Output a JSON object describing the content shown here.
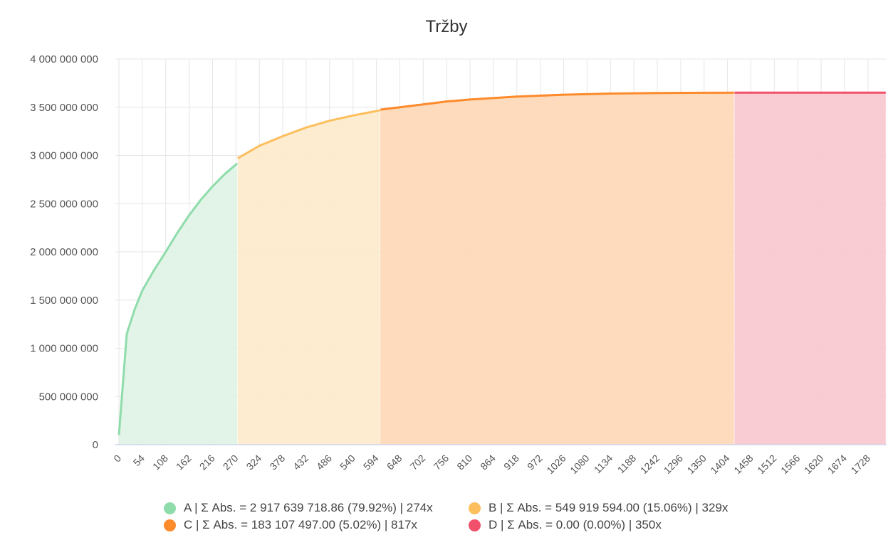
{
  "chart_data": {
    "type": "area",
    "title": "Tržby",
    "xlabel": "",
    "ylabel": "",
    "x_range": [
      0,
      1769
    ],
    "ylim": [
      0,
      4000000000
    ],
    "y_ticks": [
      0,
      500000000,
      1000000000,
      1500000000,
      2000000000,
      2500000000,
      3000000000,
      3500000000,
      4000000000
    ],
    "y_tick_labels": [
      "0",
      "500 000 000",
      "1 000 000 000",
      "1 500 000 000",
      "2 000 000 000",
      "2 500 000 000",
      "3 000 000 000",
      "3 500 000 000",
      "4 000 000 000"
    ],
    "x_ticks": [
      0,
      54,
      108,
      162,
      216,
      270,
      324,
      378,
      432,
      486,
      540,
      594,
      648,
      702,
      756,
      810,
      864,
      918,
      972,
      1026,
      1080,
      1134,
      1188,
      1242,
      1296,
      1350,
      1404,
      1458,
      1512,
      1566,
      1620,
      1674,
      1728
    ],
    "grid": true,
    "legend_position": "bottom",
    "series": [
      {
        "name": "A | Σ Abs. = 2 917 639 718.86 (79.92%) | 274x",
        "color": "#8fdcab",
        "fill": "#dff3e6",
        "points": [
          [
            0,
            100000000
          ],
          [
            18,
            1150000000
          ],
          [
            36,
            1400000000
          ],
          [
            54,
            1600000000
          ],
          [
            81,
            1810000000
          ],
          [
            108,
            2000000000
          ],
          [
            135,
            2200000000
          ],
          [
            162,
            2380000000
          ],
          [
            189,
            2540000000
          ],
          [
            216,
            2680000000
          ],
          [
            245,
            2810000000
          ],
          [
            273,
            2917639719
          ]
        ]
      },
      {
        "name": "B | Σ Abs. = 549 919 594.00 (15.06%) | 329x",
        "color": "#fdbf5e",
        "fill": "#fdebcc",
        "points": [
          [
            274,
            2970000000
          ],
          [
            324,
            3100000000
          ],
          [
            378,
            3200000000
          ],
          [
            432,
            3290000000
          ],
          [
            486,
            3360000000
          ],
          [
            540,
            3415000000
          ],
          [
            602,
            3467559313
          ]
        ]
      },
      {
        "name": "C | Σ Abs. = 183 107 497.00 (5.02%) | 817x",
        "color": "#fd8a2b",
        "fill": "#fdd9b8",
        "points": [
          [
            603,
            3475000000
          ],
          [
            648,
            3500000000
          ],
          [
            702,
            3530000000
          ],
          [
            756,
            3560000000
          ],
          [
            810,
            3580000000
          ],
          [
            918,
            3610000000
          ],
          [
            1026,
            3630000000
          ],
          [
            1134,
            3642000000
          ],
          [
            1242,
            3648000000
          ],
          [
            1350,
            3650500000
          ],
          [
            1419,
            3650666810
          ]
        ]
      },
      {
        "name": "D | Σ Abs. = 0.00 (0.00%) | 350x",
        "color": "#f0506a",
        "fill": "#f9c8d0",
        "points": [
          [
            1420,
            3650666810
          ],
          [
            1769,
            3650666810
          ]
        ]
      }
    ]
  }
}
